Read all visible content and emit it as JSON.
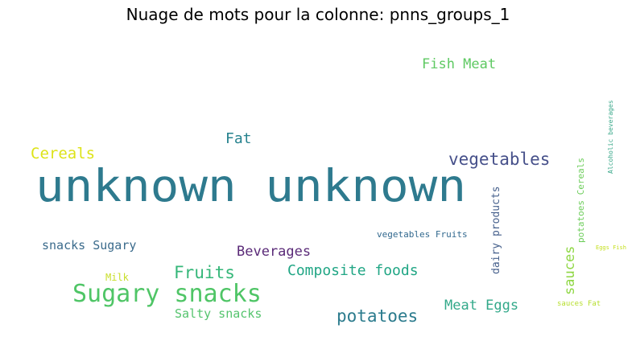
{
  "title": "Nuage de mots pour la colonne: pnns_groups_1",
  "chart_data": {
    "type": "wordcloud",
    "title": "Nuage de mots pour la colonne: pnns_groups_1",
    "words": [
      {
        "text": "unknown unknown",
        "color": "#2e7a8e",
        "orientation": "horizontal"
      },
      {
        "text": "Fish Meat",
        "color": "#5ec962",
        "orientation": "horizontal"
      },
      {
        "text": "Fat",
        "color": "#26828e",
        "orientation": "horizontal"
      },
      {
        "text": "Cereals",
        "color": "#dde318",
        "orientation": "horizontal"
      },
      {
        "text": "vegetables",
        "color": "#46508a",
        "orientation": "horizontal"
      },
      {
        "text": "snacks Sugary",
        "color": "#3b6b8c",
        "orientation": "horizontal"
      },
      {
        "text": "Beverages",
        "color": "#5a2a78",
        "orientation": "horizontal"
      },
      {
        "text": "Fruits",
        "color": "#35b779",
        "orientation": "horizontal"
      },
      {
        "text": "Composite foods",
        "color": "#21a685",
        "orientation": "horizontal"
      },
      {
        "text": "Sugary snacks",
        "color": "#4fc566",
        "orientation": "horizontal"
      },
      {
        "text": "Milk",
        "color": "#c8de2a",
        "orientation": "horizontal"
      },
      {
        "text": "Salty snacks",
        "color": "#55c46e",
        "orientation": "horizontal"
      },
      {
        "text": "potatoes",
        "color": "#2b7b8d",
        "orientation": "horizontal"
      },
      {
        "text": "Meat Eggs",
        "color": "#33a98a",
        "orientation": "horizontal"
      },
      {
        "text": "vegetables Fruits",
        "color": "#31688e",
        "orientation": "horizontal"
      },
      {
        "text": "dairy products",
        "color": "#46608c",
        "orientation": "vertical"
      },
      {
        "text": "sauces",
        "color": "#8fd744",
        "orientation": "vertical"
      },
      {
        "text": "potatoes Cereals",
        "color": "#6ccd5a",
        "orientation": "vertical"
      },
      {
        "text": "Alcoholic beverages",
        "color": "#3aa88a",
        "orientation": "vertical"
      },
      {
        "text": "Eggs Fish",
        "color": "#c5e021",
        "orientation": "horizontal"
      },
      {
        "text": "sauces Fat",
        "color": "#b6de2b",
        "orientation": "horizontal"
      }
    ]
  }
}
